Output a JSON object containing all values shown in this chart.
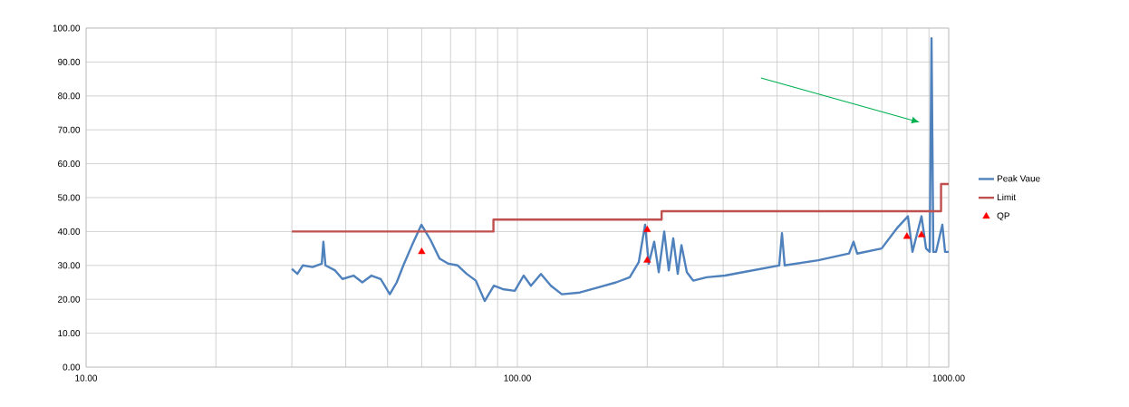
{
  "chart_data": {
    "type": "line",
    "log": "x",
    "grid": true,
    "legend": "right",
    "xlim": [
      10,
      1000
    ],
    "ylim": [
      0,
      100
    ],
    "xticks": [
      {
        "value": 10,
        "label": "10.00"
      },
      {
        "value": 100,
        "label": "100.00"
      },
      {
        "value": 1000,
        "label": "1000.00"
      }
    ],
    "yticks": [
      {
        "value": 0,
        "label": "0.00"
      },
      {
        "value": 10,
        "label": "10.00"
      },
      {
        "value": 20,
        "label": "20.00"
      },
      {
        "value": 30,
        "label": "30.00"
      },
      {
        "value": 40,
        "label": "40.00"
      },
      {
        "value": 50,
        "label": "50.00"
      },
      {
        "value": 60,
        "label": "60.00"
      },
      {
        "value": 70,
        "label": "70.00"
      },
      {
        "value": 80,
        "label": "80.00"
      },
      {
        "value": 90,
        "label": "90.00"
      },
      {
        "value": 100,
        "label": "100.00"
      }
    ],
    "series": [
      {
        "name": "Peak Vaue",
        "color": "#4f81bd",
        "x": [
          30.0,
          30.9,
          31.8,
          33.5,
          35.2,
          35.5,
          35.9,
          37.8,
          39.3,
          41.7,
          43.7,
          45.9,
          48.2,
          50.6,
          52.5,
          54.4,
          57.0,
          59.9,
          62.9,
          66.0,
          69.2,
          72.7,
          76.3,
          80.1,
          84.0,
          88.2,
          92.5,
          98.6,
          103.4,
          107.5,
          113.4,
          119.6,
          126.8,
          139.6,
          153.8,
          169.4,
          182.2,
          191.2,
          197.8,
          201.6,
          207.6,
          212.7,
          219.0,
          224.4,
          229.8,
          235.4,
          240.1,
          247.1,
          255.6,
          274.8,
          302.8,
          333.6,
          404.6,
          410.6,
          416.6,
          498.3,
          587.3,
          601.7,
          613.5,
          699.2,
          759.1,
          804.4,
          824.1,
          865.0,
          886.2,
          903.6,
          912.4,
          921.2,
          934.7,
          966.7,
          980.8,
          1000
        ],
        "values": [
          29,
          27.5,
          30,
          29.5,
          30.5,
          37,
          30,
          28.5,
          26,
          27,
          25,
          27,
          26,
          21.5,
          25,
          30,
          36,
          42,
          37.5,
          32,
          30.5,
          30,
          27.5,
          25.5,
          19.5,
          24,
          23,
          22.5,
          27,
          24,
          27.5,
          24,
          21.5,
          22,
          23.5,
          25,
          26.5,
          31,
          42,
          30.5,
          37,
          28,
          40,
          28.5,
          38,
          27.5,
          36,
          28,
          25.5,
          26.5,
          27,
          28,
          30,
          39.5,
          30,
          31.5,
          33.5,
          37,
          33.5,
          35,
          41,
          44.5,
          34,
          44.5,
          35,
          34,
          97,
          34,
          34,
          42,
          34,
          34
        ]
      },
      {
        "name": "Limit",
        "color": "#c0504d",
        "x": [
          30,
          88,
          88,
          216,
          216,
          960,
          960,
          1000
        ],
        "values": [
          40,
          40,
          43.5,
          43.5,
          46,
          46,
          54,
          54
        ]
      },
      {
        "name": "QP",
        "type": "scatter",
        "marker": "triangle",
        "color": "#ff0000",
        "x": [
          60,
          200,
          200,
          800,
          865
        ],
        "values": [
          34,
          40.5,
          31.5,
          38.5,
          39
        ]
      }
    ]
  }
}
